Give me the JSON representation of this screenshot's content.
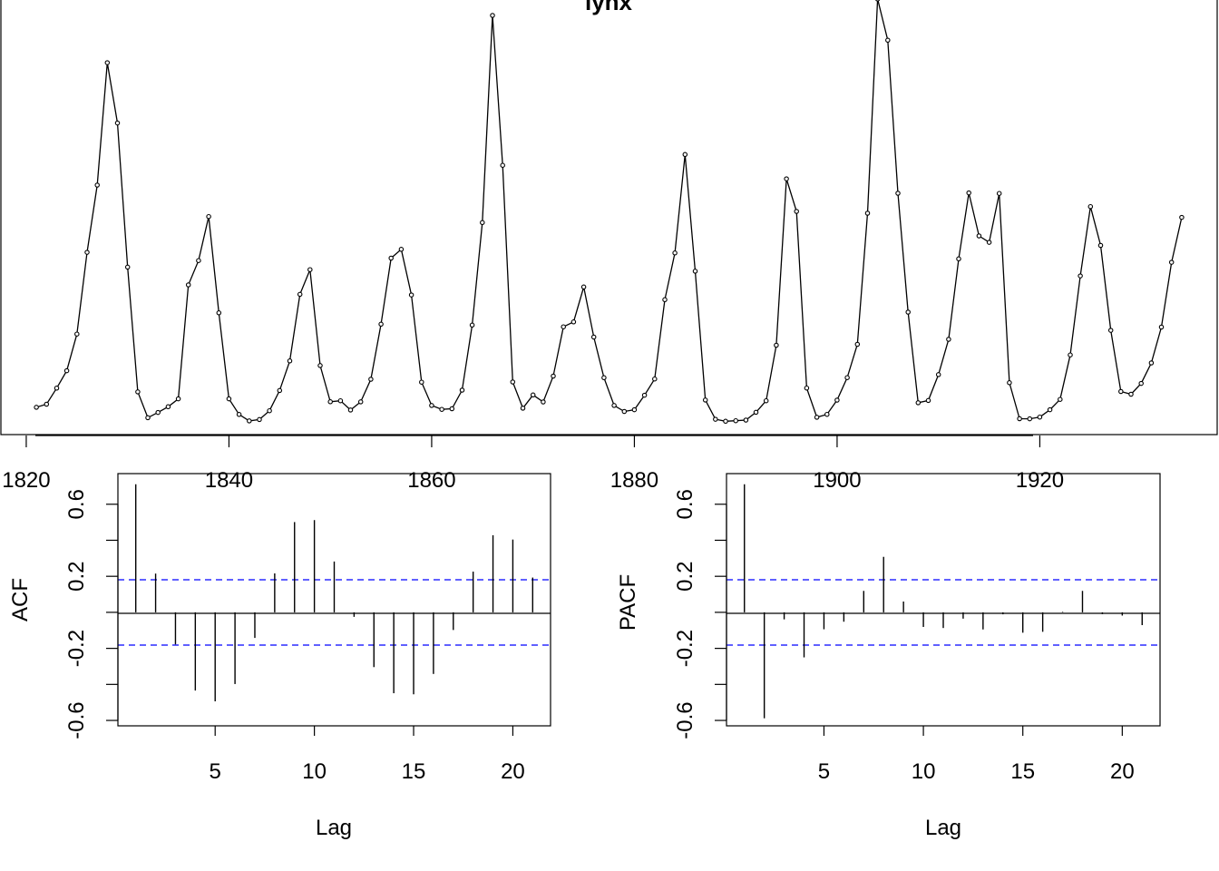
{
  "chart_data": [
    {
      "type": "line",
      "title": "lynx",
      "xlabel": "",
      "ylabel": "",
      "x_start": 1821,
      "x_ticks": [
        "1820",
        "1840",
        "1860",
        "1880",
        "1900",
        "1920"
      ],
      "xlim": [
        1817.5,
        1937.5
      ],
      "ylim": [
        -180,
        7050
      ],
      "values": [
        269,
        321,
        585,
        871,
        1475,
        2821,
        3928,
        5943,
        4950,
        2577,
        523,
        98,
        184,
        279,
        409,
        2285,
        2685,
        3409,
        1824,
        409,
        151,
        45,
        68,
        213,
        546,
        1033,
        2129,
        2536,
        957,
        361,
        377,
        225,
        360,
        731,
        1638,
        2725,
        2871,
        2119,
        684,
        299,
        236,
        245,
        552,
        1623,
        3311,
        6721,
        4254,
        687,
        255,
        473,
        358,
        784,
        1594,
        1676,
        2251,
        1426,
        756,
        299,
        201,
        229,
        469,
        736,
        2042,
        2811,
        4431,
        2511,
        389,
        73,
        39,
        49,
        59,
        188,
        377,
        1292,
        4031,
        3495,
        587,
        105,
        153,
        387,
        758,
        1307,
        3465,
        6991,
        6313,
        3794,
        1836,
        345,
        382,
        808,
        1388,
        2713,
        3800,
        3091,
        2985,
        3790,
        674,
        81,
        80,
        108,
        229,
        399,
        1132,
        2432,
        3574,
        2935,
        1537,
        529,
        485,
        662,
        1000,
        1590,
        2657,
        3396
      ]
    },
    {
      "type": "bar",
      "title": "",
      "xlabel": "Lag",
      "ylabel": "ACF",
      "lags": [
        1,
        2,
        3,
        4,
        5,
        6,
        7,
        8,
        9,
        10,
        11,
        12,
        13,
        14,
        15,
        16,
        17,
        18,
        19,
        20,
        21
      ],
      "values": [
        0.711,
        0.215,
        -0.178,
        -0.434,
        -0.494,
        -0.398,
        -0.142,
        0.216,
        0.501,
        0.512,
        0.282,
        -0.025,
        -0.304,
        -0.449,
        -0.455,
        -0.342,
        -0.098,
        0.226,
        0.428,
        0.404,
        0.193
      ],
      "ci": 0.181,
      "x_ticks": [
        "5",
        "10",
        "15",
        "20"
      ],
      "y_ticks": [
        "-0.6",
        "-0.2",
        "0.2",
        "0.6"
      ],
      "xlim": [
        0.1,
        21.9
      ],
      "ylim": [
        -0.63,
        0.77
      ]
    },
    {
      "type": "bar",
      "title": "",
      "xlabel": "Lag",
      "ylabel": "PACF",
      "lags": [
        1,
        2,
        3,
        4,
        5,
        6,
        7,
        8,
        9,
        10,
        11,
        12,
        13,
        14,
        15,
        16,
        17,
        18,
        19,
        20,
        21
      ],
      "values": [
        0.711,
        -0.588,
        -0.039,
        -0.25,
        -0.094,
        -0.052,
        0.119,
        0.308,
        0.06,
        -0.081,
        -0.087,
        -0.035,
        -0.095,
        -0.011,
        -0.113,
        -0.108,
        0.003,
        0.119,
        -0.01,
        -0.018,
        -0.071
      ],
      "ci": 0.181,
      "x_ticks": [
        "5",
        "10",
        "15",
        "20"
      ],
      "y_ticks": [
        "-0.6",
        "-0.2",
        "0.2",
        "0.6"
      ],
      "xlim": [
        0.1,
        21.9
      ],
      "ylim": [
        -0.63,
        0.77
      ]
    }
  ]
}
